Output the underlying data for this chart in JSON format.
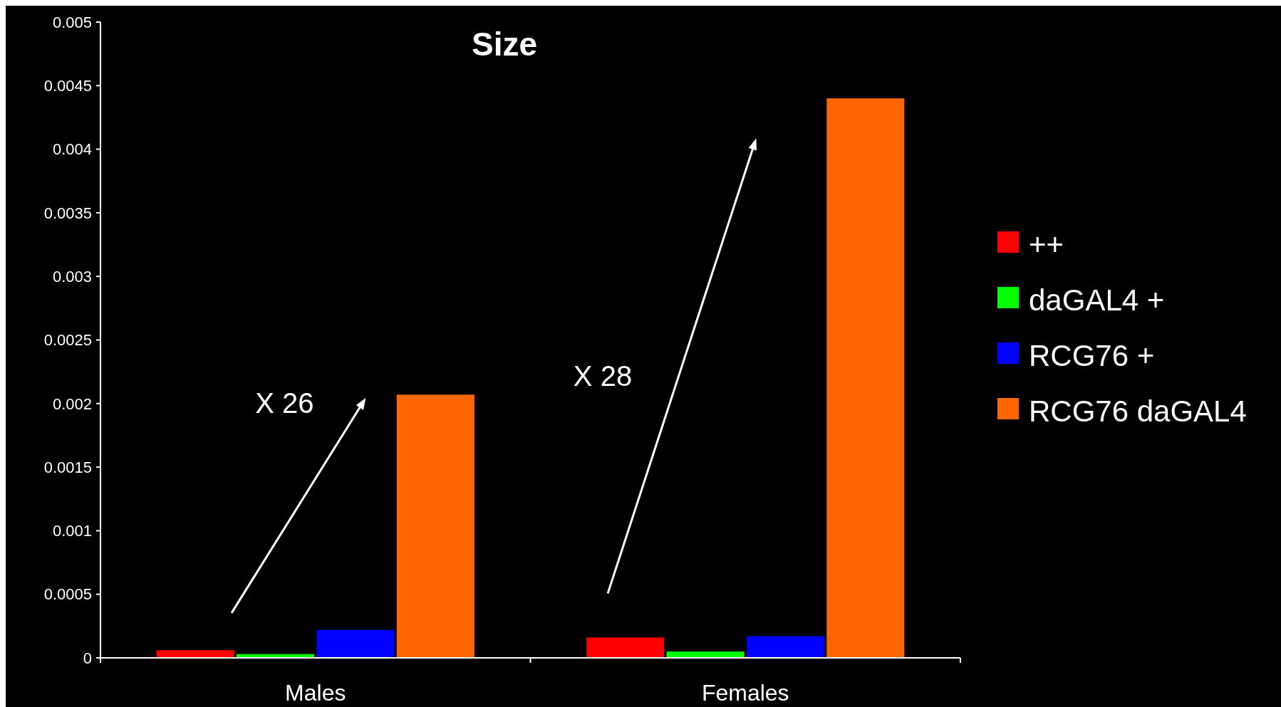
{
  "chart_data": {
    "type": "bar",
    "title": "Size",
    "categories": [
      "Males",
      "Females"
    ],
    "series": [
      {
        "name": "++",
        "color": "#ff0000",
        "values": [
          6e-05,
          0.00016
        ]
      },
      {
        "name": "daGAL4 +",
        "color": "#00ff00",
        "values": [
          3e-05,
          5e-05
        ]
      },
      {
        "name": "RCG76 +",
        "color": "#0000ff",
        "values": [
          0.00022,
          0.00017
        ]
      },
      {
        "name": "RCG76 daGAL4",
        "color": "#ff6600",
        "values": [
          0.00207,
          0.0044
        ]
      }
    ],
    "ylim": [
      0,
      0.005
    ],
    "yticks": [
      0,
      0.0005,
      0.001,
      0.0015,
      0.002,
      0.0025,
      0.003,
      0.0035,
      0.004,
      0.0045,
      0.005
    ],
    "annotations": [
      "X 26",
      "X 28"
    ],
    "legend": "right",
    "grid": false
  }
}
